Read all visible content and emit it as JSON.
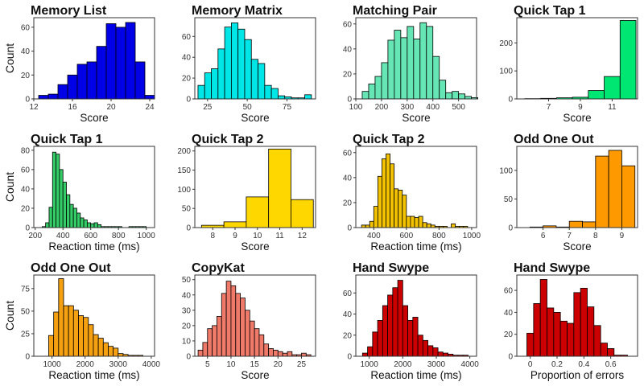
{
  "chart_data": [
    {
      "type": "bar",
      "title": "Memory List",
      "xlabel": "Score",
      "ylabel": "Count",
      "color": "#0000e6",
      "xlim": [
        12,
        24.5
      ],
      "ylim": [
        0,
        68
      ],
      "xticks": [
        12,
        16,
        20,
        24
      ],
      "yticks": [
        0,
        20,
        40,
        60
      ],
      "bins": [
        [
          12.5,
          13.5,
          3
        ],
        [
          13.5,
          14.5,
          4
        ],
        [
          14.5,
          15.5,
          12
        ],
        [
          15.5,
          16.5,
          20
        ],
        [
          16.5,
          17.5,
          29
        ],
        [
          17.5,
          18.5,
          31
        ],
        [
          18.5,
          19.5,
          44
        ],
        [
          19.5,
          20.5,
          63
        ],
        [
          20.5,
          21.5,
          60
        ],
        [
          21.5,
          22.5,
          64
        ],
        [
          22.5,
          23.5,
          31
        ],
        [
          23.5,
          24.5,
          3
        ]
      ]
    },
    {
      "type": "bar",
      "title": "Memory Matrix",
      "xlabel": "Score",
      "ylabel": "",
      "color": "#00e6e6",
      "xlim": [
        17,
        93
      ],
      "ylim": [
        0,
        78
      ],
      "xticks": [
        25,
        50,
        75
      ],
      "yticks": [
        0,
        20,
        40,
        60
      ],
      "bins": [
        [
          19,
          23.2,
          13
        ],
        [
          23.2,
          27.4,
          25
        ],
        [
          27.4,
          31.6,
          29
        ],
        [
          31.6,
          35.8,
          48
        ],
        [
          35.8,
          40,
          69
        ],
        [
          40,
          44.2,
          73
        ],
        [
          44.2,
          48.4,
          67
        ],
        [
          48.4,
          52.6,
          57
        ],
        [
          52.6,
          56.8,
          38
        ],
        [
          56.8,
          61,
          34
        ],
        [
          61,
          65.2,
          13
        ],
        [
          65.2,
          69.4,
          10
        ],
        [
          69.4,
          73.6,
          3
        ],
        [
          73.6,
          77.8,
          2
        ],
        [
          77.8,
          82,
          1
        ],
        [
          82,
          86.2,
          1
        ],
        [
          86.2,
          90.4,
          4
        ]
      ]
    },
    {
      "type": "bar",
      "title": "Matching Pair",
      "xlabel": "Score",
      "ylabel": "",
      "color": "#66e6b4",
      "xlim": [
        100,
        570
      ],
      "ylim": [
        0,
        65
      ],
      "xticks": [
        100,
        200,
        300,
        400,
        500
      ],
      "yticks": [
        0,
        20,
        40,
        60
      ],
      "bins": [
        [
          125,
          150,
          6
        ],
        [
          150,
          175,
          12
        ],
        [
          175,
          200,
          18
        ],
        [
          200,
          225,
          29
        ],
        [
          225,
          250,
          47
        ],
        [
          250,
          275,
          55
        ],
        [
          275,
          300,
          49
        ],
        [
          300,
          325,
          58
        ],
        [
          325,
          350,
          48
        ],
        [
          350,
          375,
          61
        ],
        [
          375,
          400,
          58
        ],
        [
          400,
          425,
          34
        ],
        [
          425,
          450,
          15
        ],
        [
          450,
          475,
          5
        ],
        [
          475,
          500,
          6
        ],
        [
          500,
          525,
          4
        ],
        [
          525,
          550,
          2
        ],
        [
          550,
          575,
          1
        ]
      ]
    },
    {
      "type": "bar",
      "title": "Quick Tap 1",
      "xlabel": "Score",
      "ylabel": "",
      "color": "#00e673",
      "xlim": [
        5,
        12.6
      ],
      "ylim": [
        0,
        290
      ],
      "xticks": [
        7,
        9,
        11
      ],
      "yticks": [
        0,
        100,
        200
      ],
      "bins": [
        [
          5.5,
          6.5,
          1
        ],
        [
          6.5,
          7.5,
          2
        ],
        [
          7.5,
          8.5,
          4
        ],
        [
          8.5,
          9.5,
          6
        ],
        [
          9.5,
          10.5,
          30
        ],
        [
          10.5,
          11.5,
          80
        ],
        [
          11.5,
          12.5,
          280
        ]
      ]
    },
    {
      "type": "bar",
      "title": "Quick Tap 1",
      "xlabel": "Reaction time (ms)",
      "ylabel": "Count",
      "color": "#33cc66",
      "xlim": [
        190,
        1060
      ],
      "ylim": [
        0,
        84
      ],
      "xticks": [
        200,
        400,
        600,
        800,
        1000
      ],
      "yticks": [
        0,
        20,
        40,
        60,
        80
      ],
      "bins": [
        [
          250,
          275,
          1
        ],
        [
          275,
          300,
          5
        ],
        [
          300,
          325,
          21
        ],
        [
          325,
          350,
          78
        ],
        [
          350,
          375,
          76
        ],
        [
          375,
          400,
          60
        ],
        [
          400,
          425,
          47
        ],
        [
          425,
          450,
          34
        ],
        [
          450,
          475,
          24
        ],
        [
          475,
          500,
          20
        ],
        [
          500,
          525,
          15
        ],
        [
          525,
          550,
          10
        ],
        [
          550,
          575,
          8
        ],
        [
          575,
          600,
          5
        ],
        [
          600,
          625,
          4
        ],
        [
          625,
          650,
          5
        ],
        [
          650,
          675,
          3
        ],
        [
          675,
          700,
          1
        ],
        [
          700,
          725,
          1
        ],
        [
          725,
          750,
          1
        ],
        [
          750,
          775,
          1
        ],
        [
          775,
          800,
          1
        ],
        [
          800,
          825,
          1
        ],
        [
          825,
          850,
          0
        ],
        [
          850,
          875,
          0
        ],
        [
          875,
          900,
          1
        ],
        [
          900,
          925,
          1
        ],
        [
          925,
          950,
          1
        ],
        [
          950,
          975,
          1
        ],
        [
          975,
          1000,
          1
        ]
      ]
    },
    {
      "type": "bar",
      "title": "Quick Tap 2",
      "xlabel": "Score",
      "ylabel": "",
      "color": "#ffd700",
      "xlim": [
        7.2,
        12.6
      ],
      "ylim": [
        0,
        212
      ],
      "xticks": [
        8,
        9,
        10,
        11,
        12
      ],
      "yticks": [
        0,
        50,
        100,
        150,
        200
      ],
      "bins": [
        [
          7.5,
          8.5,
          6
        ],
        [
          8.5,
          9.5,
          15
        ],
        [
          9.5,
          10.5,
          80
        ],
        [
          10.5,
          11.5,
          205
        ],
        [
          11.5,
          12.5,
          73
        ]
      ]
    },
    {
      "type": "bar",
      "title": "Quick Tap 2",
      "xlabel": "Reaction time (ms)",
      "ylabel": "",
      "color": "#f2c200",
      "xlim": [
        290,
        1030
      ],
      "ylim": [
        0,
        65
      ],
      "xticks": [
        400,
        600,
        800,
        1000
      ],
      "yticks": [
        0,
        20,
        40,
        60
      ],
      "bins": [
        [
          325,
          350,
          2
        ],
        [
          350,
          375,
          2
        ],
        [
          375,
          400,
          5
        ],
        [
          400,
          425,
          17
        ],
        [
          425,
          450,
          41
        ],
        [
          450,
          475,
          55
        ],
        [
          475,
          500,
          59
        ],
        [
          500,
          525,
          51
        ],
        [
          525,
          550,
          31
        ],
        [
          550,
          575,
          30
        ],
        [
          575,
          600,
          26
        ],
        [
          600,
          625,
          9
        ],
        [
          625,
          650,
          9
        ],
        [
          650,
          675,
          8
        ],
        [
          675,
          700,
          9
        ],
        [
          700,
          725,
          4
        ],
        [
          725,
          750,
          3
        ],
        [
          750,
          775,
          2
        ],
        [
          775,
          800,
          1
        ],
        [
          800,
          825,
          1
        ],
        [
          825,
          850,
          1
        ],
        [
          850,
          875,
          0
        ],
        [
          875,
          900,
          3
        ],
        [
          900,
          925,
          1
        ],
        [
          925,
          950,
          1
        ],
        [
          950,
          975,
          1
        ]
      ]
    },
    {
      "type": "bar",
      "title": "Odd One Out",
      "xlabel": "Score",
      "ylabel": "",
      "color": "#ff9900",
      "xlim": [
        5,
        9.6
      ],
      "ylim": [
        0,
        142
      ],
      "xticks": [
        6,
        7,
        8,
        9
      ],
      "yticks": [
        0,
        50,
        100
      ],
      "bins": [
        [
          5.5,
          6,
          1
        ],
        [
          6,
          6.5,
          3
        ],
        [
          6.5,
          7,
          1
        ],
        [
          7,
          7.5,
          11
        ],
        [
          7.5,
          8,
          10
        ],
        [
          8,
          8.5,
          125
        ],
        [
          8.5,
          9,
          135
        ],
        [
          9,
          9.5,
          108
        ]
      ]
    },
    {
      "type": "bar",
      "title": "Odd One Out",
      "xlabel": "Reaction time (ms)",
      "ylabel": "Count",
      "color": "#f5a010",
      "xlim": [
        450,
        4100
      ],
      "ylim": [
        0,
        90
      ],
      "xticks": [
        1000,
        2000,
        3000,
        4000
      ],
      "yticks": [
        0,
        25,
        50,
        75
      ],
      "bins": [
        [
          900,
          1050,
          23
        ],
        [
          1050,
          1200,
          49
        ],
        [
          1200,
          1350,
          86
        ],
        [
          1350,
          1500,
          56
        ],
        [
          1500,
          1650,
          56
        ],
        [
          1650,
          1800,
          51
        ],
        [
          1800,
          1950,
          45
        ],
        [
          1950,
          2100,
          43
        ],
        [
          2100,
          2250,
          35
        ],
        [
          2250,
          2400,
          24
        ],
        [
          2400,
          2550,
          20
        ],
        [
          2550,
          2700,
          15
        ],
        [
          2700,
          2850,
          11
        ],
        [
          2850,
          3000,
          9
        ],
        [
          3000,
          3150,
          3
        ],
        [
          3150,
          3300,
          2
        ],
        [
          3300,
          3450,
          1
        ],
        [
          3450,
          3600,
          1
        ],
        [
          3600,
          3750,
          1
        ]
      ]
    },
    {
      "type": "bar",
      "title": "CopyKat",
      "xlabel": "Score",
      "ylabel": "",
      "color": "#f07a6a",
      "xlim": [
        2.3,
        28
      ],
      "ylim": [
        0,
        53
      ],
      "xticks": [
        5,
        10,
        15,
        20,
        25
      ],
      "yticks": [
        0,
        10,
        20,
        30,
        40,
        50
      ],
      "bins": [
        [
          3,
          4,
          4
        ],
        [
          4,
          5,
          9
        ],
        [
          5,
          6,
          18
        ],
        [
          6,
          7,
          20
        ],
        [
          7,
          8,
          26
        ],
        [
          8,
          9,
          41
        ],
        [
          9,
          10,
          49
        ],
        [
          10,
          11,
          46
        ],
        [
          11,
          12,
          41
        ],
        [
          12,
          13,
          38
        ],
        [
          13,
          14,
          30
        ],
        [
          14,
          15,
          23
        ],
        [
          15,
          16,
          18
        ],
        [
          16,
          17,
          14
        ],
        [
          17,
          18,
          8
        ],
        [
          18,
          19,
          5
        ],
        [
          19,
          20,
          4
        ],
        [
          20,
          21,
          3
        ],
        [
          21,
          22,
          2
        ],
        [
          22,
          23,
          3
        ],
        [
          23,
          24,
          1
        ],
        [
          24,
          25,
          1
        ],
        [
          25,
          26,
          2
        ],
        [
          26,
          27,
          1
        ]
      ]
    },
    {
      "type": "bar",
      "title": "Hand Swype",
      "xlabel": "Reaction time (ms)",
      "ylabel": "",
      "color": "#cc0000",
      "xlim": [
        600,
        4200
      ],
      "ylim": [
        0,
        77
      ],
      "xticks": [
        1000,
        2000,
        3000,
        4000
      ],
      "yticks": [
        0,
        20,
        40,
        60
      ],
      "bins": [
        [
          800,
          950,
          3
        ],
        [
          950,
          1100,
          9
        ],
        [
          1100,
          1250,
          23
        ],
        [
          1250,
          1400,
          34
        ],
        [
          1400,
          1550,
          48
        ],
        [
          1550,
          1700,
          58
        ],
        [
          1700,
          1850,
          65
        ],
        [
          1850,
          2000,
          72
        ],
        [
          2000,
          2150,
          48
        ],
        [
          2150,
          2300,
          34
        ],
        [
          2300,
          2450,
          37
        ],
        [
          2450,
          2600,
          20
        ],
        [
          2600,
          2750,
          15
        ],
        [
          2750,
          2900,
          10
        ],
        [
          2900,
          3050,
          8
        ],
        [
          3050,
          3200,
          4
        ],
        [
          3200,
          3350,
          3
        ],
        [
          3350,
          3500,
          2
        ],
        [
          3500,
          3650,
          1
        ],
        [
          3650,
          3800,
          1
        ],
        [
          3800,
          3950,
          1
        ]
      ]
    },
    {
      "type": "bar",
      "title": "Hand Swype",
      "xlabel": "Proportion of errors",
      "ylabel": "",
      "color": "#cc0000",
      "xlim": [
        -0.1,
        0.8
      ],
      "ylim": [
        0,
        74
      ],
      "xticks": [
        0.0,
        0.2,
        0.4,
        0.6
      ],
      "yticks": [
        0,
        20,
        40,
        60
      ],
      "bins": [
        [
          -0.025,
          0.025,
          21
        ],
        [
          0.025,
          0.075,
          48
        ],
        [
          0.075,
          0.125,
          70
        ],
        [
          0.125,
          0.175,
          44
        ],
        [
          0.175,
          0.225,
          40
        ],
        [
          0.225,
          0.275,
          32
        ],
        [
          0.275,
          0.325,
          30
        ],
        [
          0.325,
          0.375,
          58
        ],
        [
          0.375,
          0.425,
          62
        ],
        [
          0.425,
          0.475,
          45
        ],
        [
          0.475,
          0.525,
          28
        ],
        [
          0.525,
          0.575,
          12
        ],
        [
          0.575,
          0.625,
          7
        ],
        [
          0.625,
          0.675,
          1
        ],
        [
          0.675,
          0.725,
          1
        ]
      ]
    }
  ]
}
